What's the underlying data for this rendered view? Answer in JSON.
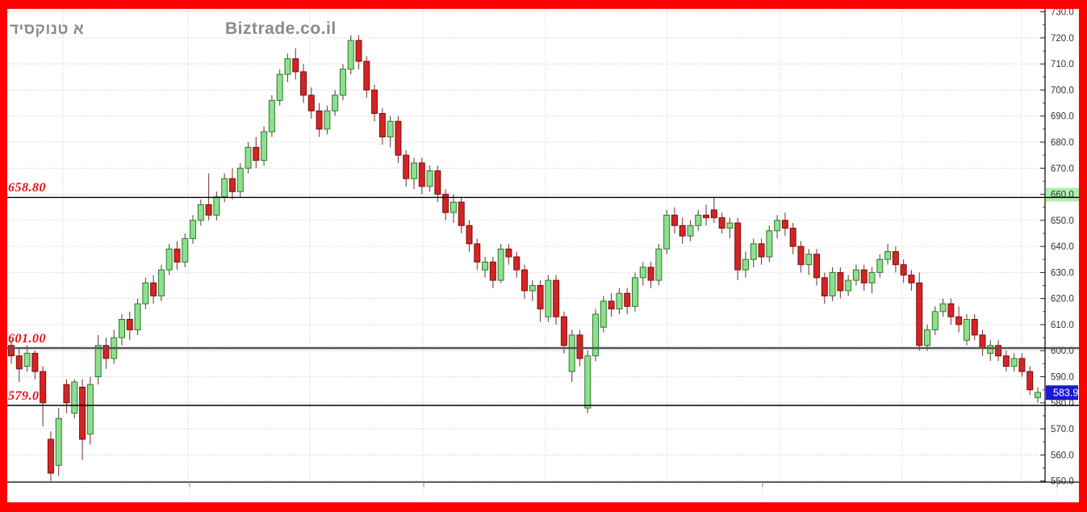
{
  "frame": {
    "border_color": "#fe0000"
  },
  "header": {
    "instrument_title": "דיסקונט א",
    "watermark": "Biztrade.co.il"
  },
  "levels": [
    {
      "label": "658.80",
      "value": 658.8,
      "line_color": "#000000",
      "line_width": 1.4
    },
    {
      "label": "601.00",
      "value": 601.0,
      "line_color": "#555555",
      "line_width": 2.4
    },
    {
      "label": "579.00",
      "value": 579.0,
      "line_color": "#000000",
      "line_width": 1.4
    }
  ],
  "current_price": {
    "label": "583.9",
    "value": 583.9,
    "box_color": "#1a1ad0",
    "text_color": "#ffffff"
  },
  "axis": {
    "side": "right",
    "y_major_ticks": [
      730,
      720,
      710,
      700,
      690,
      680,
      670,
      660,
      650,
      640,
      630,
      620,
      610,
      600,
      590,
      580,
      570,
      560,
      550
    ],
    "y_minor_step": 5,
    "label_suffix": ".0",
    "highlighted_tick": {
      "value": 660,
      "color": "#aef0ae"
    },
    "label_color": "#333333"
  },
  "chart_data": {
    "type": "candlestick",
    "title": "",
    "xlabel": "",
    "ylabel": "",
    "ylim": [
      548,
      731
    ],
    "grid": true,
    "vertical_gridline_x": [
      78,
      233,
      384,
      524,
      676,
      827,
      967,
      1118,
      1266
    ],
    "bottom_tick_x": [
      235,
      525,
      945,
      1310
    ],
    "colors": {
      "up_fill": "#8ee08e",
      "up_border": "#2c7a2c",
      "down_fill": "#d42424",
      "down_border": "#7a1010",
      "wick": "#7a4040",
      "grid": "#c9c9c9",
      "axis": "#000000"
    },
    "candles_format": [
      "open",
      "high",
      "low",
      "close"
    ],
    "candles": [
      [
        602,
        604,
        595,
        598
      ],
      [
        598,
        601,
        588,
        593
      ],
      [
        594,
        602,
        592,
        599
      ],
      [
        599,
        600,
        589,
        592
      ],
      [
        592,
        594,
        571,
        580
      ],
      [
        566,
        569,
        550,
        553
      ],
      [
        556,
        578,
        552,
        574
      ],
      [
        587,
        589,
        576,
        580
      ],
      [
        576,
        589,
        574,
        588
      ],
      [
        586,
        589,
        558,
        566
      ],
      [
        568,
        590,
        564,
        587
      ],
      [
        590,
        606,
        587,
        602
      ],
      [
        602,
        605,
        593,
        597
      ],
      [
        597,
        608,
        595,
        605
      ],
      [
        605,
        614,
        602,
        612
      ],
      [
        612,
        615,
        604,
        608
      ],
      [
        608,
        620,
        606,
        618
      ],
      [
        618,
        628,
        616,
        626
      ],
      [
        626,
        629,
        618,
        621
      ],
      [
        621,
        633,
        619,
        631
      ],
      [
        631,
        641,
        629,
        639
      ],
      [
        639,
        642,
        631,
        634
      ],
      [
        634,
        645,
        632,
        643
      ],
      [
        643,
        652,
        641,
        650
      ],
      [
        650,
        658,
        648,
        656
      ],
      [
        656,
        668,
        650,
        652
      ],
      [
        652,
        661,
        650,
        659
      ],
      [
        659,
        668,
        657,
        666
      ],
      [
        666,
        670,
        658,
        661
      ],
      [
        661,
        672,
        659,
        670
      ],
      [
        670,
        680,
        668,
        678
      ],
      [
        678,
        682,
        670,
        673
      ],
      [
        673,
        686,
        671,
        684
      ],
      [
        684,
        698,
        682,
        696
      ],
      [
        696,
        708,
        694,
        706
      ],
      [
        706,
        714,
        703,
        712
      ],
      [
        712,
        716,
        704,
        707
      ],
      [
        707,
        710,
        695,
        698
      ],
      [
        698,
        701,
        689,
        692
      ],
      [
        692,
        695,
        682,
        685
      ],
      [
        685,
        694,
        683,
        692
      ],
      [
        692,
        700,
        690,
        698
      ],
      [
        698,
        710,
        696,
        708
      ],
      [
        708,
        721,
        706,
        719
      ],
      [
        719,
        721,
        708,
        711
      ],
      [
        711,
        713,
        697,
        700
      ],
      [
        700,
        702,
        688,
        691
      ],
      [
        691,
        693,
        679,
        682
      ],
      [
        682,
        690,
        678,
        688
      ],
      [
        688,
        690,
        672,
        675
      ],
      [
        675,
        677,
        663,
        666
      ],
      [
        666,
        674,
        662,
        672
      ],
      [
        672,
        674,
        660,
        663
      ],
      [
        663,
        671,
        661,
        669
      ],
      [
        669,
        671,
        657,
        660
      ],
      [
        660,
        662,
        650,
        653
      ],
      [
        653,
        660,
        649,
        657
      ],
      [
        657,
        659,
        645,
        648
      ],
      [
        648,
        650,
        638,
        641
      ],
      [
        641,
        643,
        631,
        634
      ],
      [
        631,
        636,
        628,
        634
      ],
      [
        634,
        636,
        624,
        627
      ],
      [
        627,
        641,
        626,
        639
      ],
      [
        639,
        641,
        633,
        636
      ],
      [
        636,
        638,
        628,
        631
      ],
      [
        631,
        633,
        620,
        623
      ],
      [
        623,
        627,
        619,
        625
      ],
      [
        625,
        627,
        611,
        616
      ],
      [
        613,
        629,
        611,
        627
      ],
      [
        627,
        629,
        610,
        613
      ],
      [
        613,
        615,
        599,
        602
      ],
      [
        592,
        608,
        588,
        606
      ],
      [
        606,
        608,
        594,
        597
      ],
      [
        578,
        600,
        576,
        598
      ],
      [
        598,
        616,
        596,
        614
      ],
      [
        609,
        621,
        607,
        619
      ],
      [
        619,
        622,
        613,
        616
      ],
      [
        616,
        624,
        614,
        622
      ],
      [
        622,
        624,
        614,
        617
      ],
      [
        617,
        630,
        615,
        628
      ],
      [
        628,
        634,
        625,
        632
      ],
      [
        632,
        634,
        624,
        627
      ],
      [
        627,
        641,
        625,
        639
      ],
      [
        639,
        654,
        637,
        652
      ],
      [
        652,
        655,
        645,
        648
      ],
      [
        648,
        651,
        641,
        644
      ],
      [
        644,
        650,
        642,
        648
      ],
      [
        648,
        654,
        646,
        652
      ],
      [
        652,
        656,
        648,
        651
      ],
      [
        654,
        659,
        649,
        651
      ],
      [
        651,
        653,
        645,
        647
      ],
      [
        647,
        651,
        643,
        649
      ],
      [
        649,
        651,
        627,
        631
      ],
      [
        631,
        638,
        628,
        635
      ],
      [
        635,
        643,
        632,
        641
      ],
      [
        641,
        643,
        633,
        636
      ],
      [
        636,
        648,
        634,
        646
      ],
      [
        646,
        652,
        643,
        650
      ],
      [
        650,
        653,
        644,
        647
      ],
      [
        647,
        649,
        637,
        640
      ],
      [
        640,
        642,
        630,
        633
      ],
      [
        633,
        639,
        629,
        637
      ],
      [
        637,
        639,
        625,
        628
      ],
      [
        628,
        630,
        618,
        621
      ],
      [
        621,
        632,
        619,
        630
      ],
      [
        630,
        632,
        620,
        623
      ],
      [
        623,
        629,
        621,
        627
      ],
      [
        627,
        633,
        625,
        631
      ],
      [
        631,
        633,
        623,
        626
      ],
      [
        626,
        632,
        622,
        630
      ],
      [
        630,
        637,
        628,
        635
      ],
      [
        635,
        641,
        633,
        638
      ],
      [
        638,
        640,
        630,
        633
      ],
      [
        633,
        635,
        626,
        629
      ],
      [
        629,
        631,
        623,
        626
      ],
      [
        626,
        630,
        600,
        602
      ],
      [
        602,
        610,
        600,
        608
      ],
      [
        608,
        617,
        606,
        615
      ],
      [
        615,
        620,
        613,
        618
      ],
      [
        618,
        620,
        610,
        613
      ],
      [
        613,
        617,
        607,
        610
      ],
      [
        604,
        614,
        602,
        612
      ],
      [
        612,
        614,
        604,
        606
      ],
      [
        606,
        608,
        598,
        601
      ],
      [
        599,
        604,
        596,
        602
      ],
      [
        602,
        604,
        596,
        598
      ],
      [
        598,
        600,
        592,
        594
      ],
      [
        594,
        599,
        592,
        597
      ],
      [
        597,
        599,
        590,
        592
      ],
      [
        592,
        594,
        583,
        585
      ],
      [
        582,
        586,
        580,
        584
      ]
    ]
  }
}
